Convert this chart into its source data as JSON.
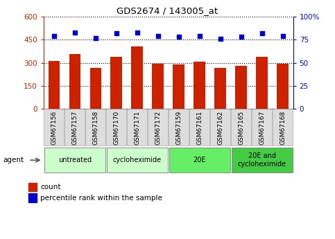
{
  "title": "GDS2674 / 143005_at",
  "samples": [
    "GSM67156",
    "GSM67157",
    "GSM67158",
    "GSM67170",
    "GSM67171",
    "GSM67172",
    "GSM67159",
    "GSM67161",
    "GSM67162",
    "GSM67165",
    "GSM67167",
    "GSM67168"
  ],
  "counts": [
    310,
    355,
    265,
    340,
    405,
    295,
    290,
    305,
    265,
    280,
    340,
    295
  ],
  "percentile": [
    79,
    83,
    77,
    82,
    83,
    79,
    78,
    79,
    76,
    78,
    82,
    79
  ],
  "bar_color": "#cc2200",
  "dot_color": "#0000cc",
  "ylim_left": [
    0,
    600
  ],
  "ylim_right": [
    0,
    100
  ],
  "yticks_left": [
    0,
    150,
    300,
    450,
    600
  ],
  "yticks_right": [
    0,
    25,
    50,
    75,
    100
  ],
  "ytick_labels_left": [
    "0",
    "150",
    "300",
    "450",
    "600"
  ],
  "ytick_labels_right": [
    "0",
    "25",
    "50",
    "75",
    "100%"
  ],
  "groups": [
    {
      "label": "untreated",
      "start": 0,
      "end": 3,
      "color": "#ccffcc"
    },
    {
      "label": "cycloheximide",
      "start": 3,
      "end": 6,
      "color": "#ccffcc"
    },
    {
      "label": "20E",
      "start": 6,
      "end": 9,
      "color": "#66ee66"
    },
    {
      "label": "20E and\ncycloheximide",
      "start": 9,
      "end": 12,
      "color": "#44cc44"
    }
  ],
  "legend_count_label": "count",
  "legend_pct_label": "percentile rank within the sample",
  "agent_label": "agent",
  "sample_cell_color": "#dddddd",
  "plot_bg_color": "#ffffff",
  "grid_color": "#000000"
}
